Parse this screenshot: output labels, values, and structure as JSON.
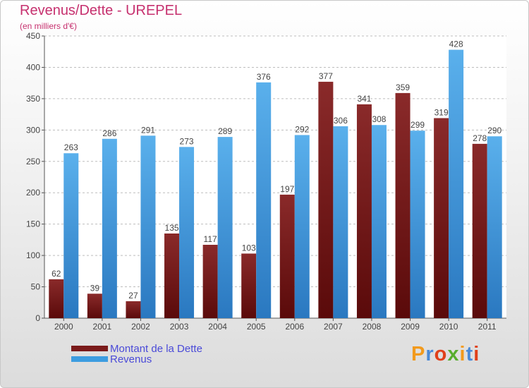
{
  "chart_data": {
    "type": "bar",
    "title": "Revenus/Dette - UREPEL",
    "subtitle": "(en milliers d'€)",
    "categories": [
      "2000",
      "2001",
      "2002",
      "2003",
      "2004",
      "2005",
      "2006",
      "2007",
      "2008",
      "2009",
      "2010",
      "2011"
    ],
    "series": [
      {
        "name": "Montant de la Dette",
        "color": "#7a1a1a",
        "values": [
          62,
          39,
          27,
          135,
          117,
          103,
          197,
          377,
          341,
          359,
          319,
          278
        ]
      },
      {
        "name": "Revenus",
        "color": "#3d9de0",
        "values": [
          263,
          286,
          291,
          273,
          289,
          376,
          292,
          306,
          308,
          299,
          428,
          290
        ]
      }
    ],
    "ylim": [
      0,
      450
    ],
    "yticks": [
      "0",
      "50",
      "100",
      "150",
      "200",
      "250",
      "300",
      "350",
      "400",
      "450"
    ],
    "grid": true,
    "legend_position": "bottom-left"
  },
  "logo": {
    "letters": [
      "P",
      "r",
      "o",
      "x",
      "i",
      "t",
      "i"
    ],
    "colors": [
      "#f29a1d",
      "#4a8ad8",
      "#e0401a",
      "#57ad2e",
      "#f29a1d",
      "#4a8ad8",
      "#e0401a"
    ]
  }
}
